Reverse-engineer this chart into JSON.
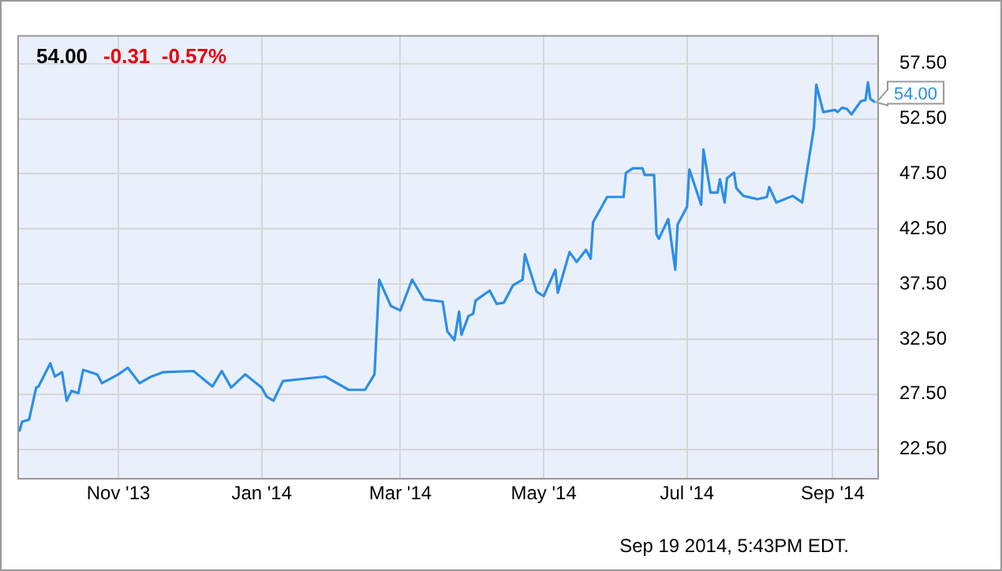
{
  "chart_data": {
    "type": "line",
    "title": "54.00",
    "subtitle": "-0.31  -0.57%",
    "x": [
      "2013-09-19",
      "2013-09-20",
      "2013-09-21",
      "2013-09-24",
      "2013-09-27",
      "2013-09-28",
      "2013-10-03",
      "2013-10-05",
      "2013-10-08",
      "2013-10-10",
      "2013-10-12",
      "2013-10-15",
      "2013-10-17",
      "2013-10-23",
      "2013-10-25",
      "2013-11-01",
      "2013-11-05",
      "2013-11-10",
      "2013-11-15",
      "2013-11-20",
      "2013-12-03",
      "2013-12-11",
      "2013-12-15",
      "2013-12-19",
      "2013-12-25",
      "2014-01-01",
      "2014-01-03",
      "2014-01-06",
      "2014-01-10",
      "2014-01-19",
      "2014-01-28",
      "2014-02-07",
      "2014-02-14",
      "2014-02-18",
      "2014-02-20",
      "2014-02-25",
      "2014-03-01",
      "2014-03-06",
      "2014-03-11",
      "2014-03-19",
      "2014-03-21",
      "2014-03-24",
      "2014-03-26",
      "2014-03-27",
      "2014-03-30",
      "2014-04-01",
      "2014-04-02",
      "2014-04-08",
      "2014-04-11",
      "2014-04-14",
      "2014-04-18",
      "2014-04-22",
      "2014-04-23",
      "2014-04-28",
      "2014-05-01",
      "2014-05-06",
      "2014-05-07",
      "2014-05-12",
      "2014-05-15",
      "2014-05-19",
      "2014-05-21",
      "2014-05-22",
      "2014-05-28",
      "2014-06-04",
      "2014-06-05",
      "2014-06-08",
      "2014-06-12",
      "2014-06-13",
      "2014-06-17",
      "2014-06-18",
      "2014-06-19",
      "2014-06-23",
      "2014-06-26",
      "2014-06-27",
      "2014-07-01",
      "2014-07-02",
      "2014-07-07",
      "2014-07-08",
      "2014-07-11",
      "2014-07-14",
      "2014-07-15",
      "2014-07-17",
      "2014-07-18",
      "2014-07-21",
      "2014-07-22",
      "2014-07-25",
      "2014-07-31",
      "2014-08-04",
      "2014-08-05",
      "2014-08-08",
      "2014-08-15",
      "2014-08-19",
      "2014-08-20",
      "2014-08-24",
      "2014-08-25",
      "2014-08-28",
      "2014-09-02",
      "2014-09-03",
      "2014-09-05",
      "2014-09-07",
      "2014-09-09",
      "2014-09-13",
      "2014-09-15",
      "2014-09-16",
      "2014-09-17",
      "2014-09-19"
    ],
    "series": [
      {
        "color": "#2b8ee8",
        "values": [
          24.6,
          24.2,
          25.0,
          25.2,
          28.1,
          28.2,
          30.3,
          29.1,
          29.5,
          26.9,
          27.8,
          27.6,
          29.7,
          29.3,
          28.5,
          29.3,
          29.9,
          28.5,
          29.1,
          29.5,
          29.6,
          28.2,
          29.6,
          28.1,
          29.3,
          28.1,
          27.3,
          26.9,
          28.7,
          28.9,
          29.1,
          27.9,
          27.9,
          29.3,
          37.9,
          35.5,
          35.1,
          37.9,
          36.1,
          35.9,
          33.2,
          32.4,
          35.0,
          32.9,
          34.6,
          34.8,
          36.0,
          36.9,
          35.7,
          35.8,
          37.4,
          37.9,
          40.2,
          36.8,
          36.4,
          38.8,
          36.7,
          40.4,
          39.5,
          40.6,
          39.8,
          43.1,
          45.4,
          45.4,
          47.6,
          48.0,
          48.0,
          47.4,
          47.4,
          42.0,
          41.6,
          43.4,
          38.8,
          42.9,
          44.5,
          47.9,
          44.7,
          49.7,
          45.8,
          45.8,
          47.0,
          44.9,
          47.1,
          47.6,
          46.2,
          45.5,
          45.2,
          45.4,
          46.3,
          44.9,
          45.5,
          44.9,
          46.3,
          51.7,
          55.6,
          53.1,
          53.3,
          53.1,
          53.5,
          53.4,
          52.9,
          54.1,
          54.2,
          55.8,
          54.3,
          54.0
        ]
      }
    ],
    "xlim": [
      "2013-09-19",
      "2014-09-20"
    ],
    "xticks": [
      {
        "value": "2013-11-01",
        "label": "Nov '13"
      },
      {
        "value": "2014-01-01",
        "label": "Jan '14"
      },
      {
        "value": "2014-03-01",
        "label": "Mar '14"
      },
      {
        "value": "2014-05-01",
        "label": "May '14"
      },
      {
        "value": "2014-07-01",
        "label": "Jul '14"
      },
      {
        "value": "2014-09-01",
        "label": "Sep '14"
      }
    ],
    "ylim": [
      19.9,
      60.1
    ],
    "yticks": [
      {
        "value": 22.5,
        "label": "22.50"
      },
      {
        "value": 27.5,
        "label": "27.50"
      },
      {
        "value": 32.5,
        "label": "32.50"
      },
      {
        "value": 37.5,
        "label": "37.50"
      },
      {
        "value": 42.5,
        "label": "42.50"
      },
      {
        "value": 47.5,
        "label": "47.50"
      },
      {
        "value": 52.5,
        "label": "52.50"
      },
      {
        "value": 57.5,
        "label": "57.50"
      }
    ],
    "grid": true,
    "legend": false,
    "marker": "none",
    "line_style": "solid",
    "annotations": [
      {
        "text": "54.00",
        "x": "2014-09-19",
        "y": 54.0
      },
      "Sep 19 2014, 5:43PM EDT."
    ]
  }
}
